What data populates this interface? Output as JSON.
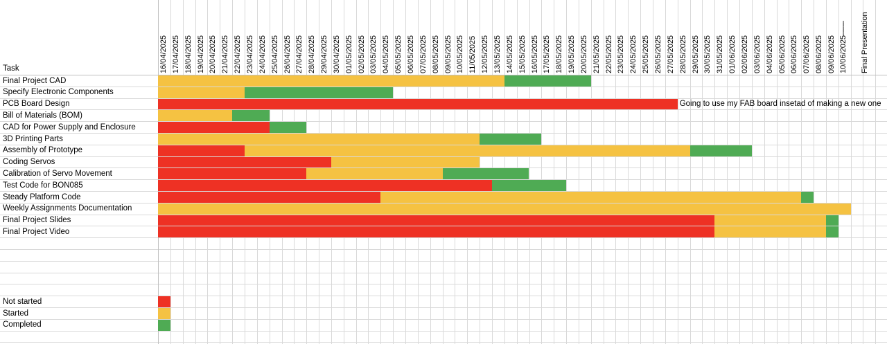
{
  "colors": {
    "not_started": "#ee3124",
    "started": "#f5c242",
    "completed": "#4fab54"
  },
  "header": {
    "task_label": "Task"
  },
  "dates": [
    "16/04/2025",
    "17/04/2025",
    "18/04/2025",
    "19/04/2025",
    "20/04/2025",
    "21/04/2025",
    "22/04/2025",
    "23/04/2025",
    "24/04/2025",
    "25/04/2025",
    "26/04/2025",
    "27/04/2025",
    "28/04/2025",
    "29/04/2025",
    "30/04/2025",
    "01/05/2025",
    "02/05/2025",
    "03/05/2025",
    "04/05/2025",
    "05/05/2025",
    "06/05/2025",
    "07/05/2025",
    "08/05/2025",
    "09/05/2025",
    "10/05/2025",
    "11/05/2025",
    "12/05/2025",
    "13/05/2025",
    "14/05/2025",
    "15/05/2025",
    "16/05/2025",
    "17/05/2025",
    "18/05/2025",
    "19/05/2025",
    "20/05/2025",
    "21/05/2025",
    "22/05/2025",
    "23/05/2025",
    "24/05/2025",
    "25/05/2025",
    "26/05/2025",
    "27/05/2025",
    "28/05/2025",
    "29/05/2025",
    "30/05/2025",
    "31/05/2025",
    "01/06/2025",
    "02/06/2025",
    "03/06/2025",
    "04/06/2025",
    "05/06/2025",
    "06/06/2025",
    "07/06/2025",
    "08/06/2025",
    "09/06/2025"
  ],
  "final_presentation": {
    "date": "10/06/2025",
    "dashes": "--------",
    "label": "Final Presentation"
  },
  "chart_data": {
    "type": "table",
    "tasks": [
      {
        "name": "Final Project CAD",
        "segments": [
          {
            "status": "started",
            "start": "16/04/2025",
            "end": "13/05/2025"
          },
          {
            "status": "completed",
            "start": "14/05/2025",
            "end": "20/05/2025"
          }
        ]
      },
      {
        "name": "Specify Electronic Components",
        "segments": [
          {
            "status": "started",
            "start": "16/04/2025",
            "end": "22/04/2025"
          },
          {
            "status": "completed",
            "start": "23/04/2025",
            "end": "04/05/2025"
          }
        ]
      },
      {
        "name": "PCB Board Design",
        "segments": [
          {
            "status": "not_started",
            "start": "16/04/2025",
            "end": "27/05/2025"
          }
        ],
        "note": "Going to use my FAB board insetad of making a new one"
      },
      {
        "name": "Bill of Materials (BOM)",
        "segments": [
          {
            "status": "started",
            "start": "16/04/2025",
            "end": "21/04/2025"
          },
          {
            "status": "completed",
            "start": "22/04/2025",
            "end": "24/04/2025"
          }
        ]
      },
      {
        "name": "CAD for Power Supply and Enclosure",
        "segments": [
          {
            "status": "not_started",
            "start": "16/04/2025",
            "end": "24/04/2025"
          },
          {
            "status": "completed",
            "start": "25/04/2025",
            "end": "27/04/2025"
          }
        ]
      },
      {
        "name": "3D Printing Parts",
        "segments": [
          {
            "status": "started",
            "start": "16/04/2025",
            "end": "11/05/2025"
          },
          {
            "status": "completed",
            "start": "12/05/2025",
            "end": "16/05/2025"
          }
        ]
      },
      {
        "name": "Assembly of Prototype",
        "segments": [
          {
            "status": "not_started",
            "start": "16/04/2025",
            "end": "22/04/2025"
          },
          {
            "status": "started",
            "start": "23/04/2025",
            "end": "28/05/2025"
          },
          {
            "status": "completed",
            "start": "29/05/2025",
            "end": "02/06/2025"
          }
        ]
      },
      {
        "name": "Coding Servos",
        "segments": [
          {
            "status": "not_started",
            "start": "16/04/2025",
            "end": "29/04/2025"
          },
          {
            "status": "started",
            "start": "30/04/2025",
            "end": "11/05/2025"
          }
        ]
      },
      {
        "name": "Calibration of Servo Movement",
        "segments": [
          {
            "status": "not_started",
            "start": "16/04/2025",
            "end": "27/04/2025"
          },
          {
            "status": "started",
            "start": "28/04/2025",
            "end": "08/05/2025"
          },
          {
            "status": "completed",
            "start": "09/05/2025",
            "end": "15/05/2025"
          }
        ]
      },
      {
        "name": "Test Code for BON085",
        "segments": [
          {
            "status": "not_started",
            "start": "16/04/2025",
            "end": "12/05/2025"
          },
          {
            "status": "completed",
            "start": "13/05/2025",
            "end": "18/05/2025"
          }
        ]
      },
      {
        "name": "Steady Platform Code",
        "segments": [
          {
            "status": "not_started",
            "start": "16/04/2025",
            "end": "03/05/2025"
          },
          {
            "status": "started",
            "start": "04/05/2025",
            "end": "06/06/2025"
          },
          {
            "status": "completed",
            "start": "07/06/2025",
            "end": "07/06/2025"
          }
        ]
      },
      {
        "name": "Weekly Assignments Documentation",
        "segments": [
          {
            "status": "started",
            "start": "16/04/2025",
            "end": "10/06/2025"
          }
        ]
      },
      {
        "name": "Final Project Slides",
        "segments": [
          {
            "status": "not_started",
            "start": "16/04/2025",
            "end": "30/05/2025"
          },
          {
            "status": "started",
            "start": "31/05/2025",
            "end": "08/06/2025"
          },
          {
            "status": "completed",
            "start": "09/06/2025",
            "end": "09/06/2025"
          }
        ]
      },
      {
        "name": "Final Project Video",
        "segments": [
          {
            "status": "not_started",
            "start": "16/04/2025",
            "end": "30/05/2025"
          },
          {
            "status": "started",
            "start": "31/05/2025",
            "end": "08/06/2025"
          },
          {
            "status": "completed",
            "start": "09/06/2025",
            "end": "09/06/2025"
          }
        ]
      }
    ]
  },
  "legend": [
    {
      "label": "Not started",
      "status": "not_started"
    },
    {
      "label": "Started",
      "status": "started"
    },
    {
      "label": "Completed",
      "status": "completed"
    }
  ]
}
